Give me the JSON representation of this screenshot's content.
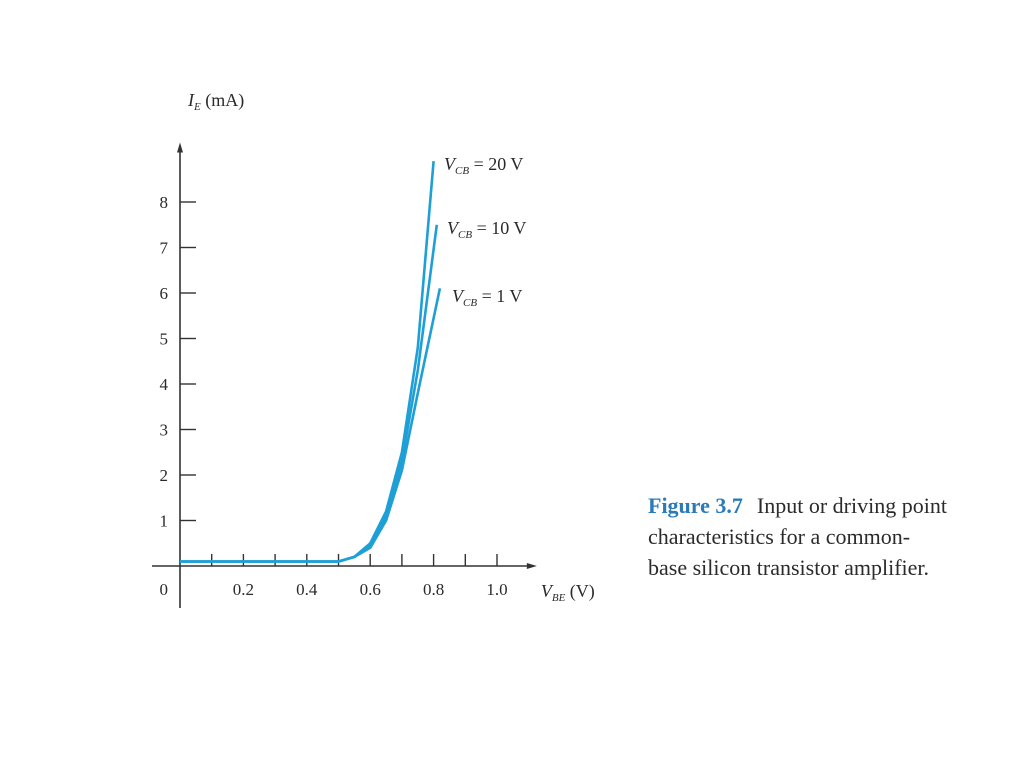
{
  "caption": {
    "figure_label": "Figure 3.7",
    "text": "Input or driving point characteristics for a common-base silicon transistor amplifier."
  },
  "chart_data": {
    "type": "line",
    "ylabel_var": "I",
    "ylabel_sub": "E",
    "ylabel_unit": "(mA)",
    "xlabel_var": "V",
    "xlabel_sub": "BE",
    "xlabel_unit": "(V)",
    "origin_label": "0",
    "xlim": [
      0,
      1.05
    ],
    "ylim": [
      0,
      9
    ],
    "x_ticks": [
      0.1,
      0.2,
      0.3,
      0.4,
      0.5,
      0.6,
      0.7,
      0.8,
      0.9,
      1.0
    ],
    "x_tick_labels": [
      {
        "value": 0.2,
        "label": "0.2"
      },
      {
        "value": 0.4,
        "label": "0.4"
      },
      {
        "value": 0.6,
        "label": "0.6"
      },
      {
        "value": 0.8,
        "label": "0.8"
      },
      {
        "value": 1.0,
        "label": "1.0"
      }
    ],
    "y_ticks": [
      1,
      2,
      3,
      4,
      5,
      6,
      7,
      8
    ],
    "y_tick_labels": [
      "1",
      "2",
      "3",
      "4",
      "5",
      "6",
      "7",
      "8"
    ],
    "colors": {
      "curve": "#1e9fd6",
      "axis": "#333333"
    },
    "series": [
      {
        "name": "V_CB = 20 V",
        "label_var": "V",
        "label_sub": "CB",
        "label_value": "= 20 V",
        "x": [
          0,
          0.5,
          0.55,
          0.6,
          0.65,
          0.7,
          0.75,
          0.8
        ],
        "y": [
          0.1,
          0.1,
          0.2,
          0.5,
          1.2,
          2.5,
          4.8,
          8.9
        ]
      },
      {
        "name": "V_CB = 10 V",
        "label_var": "V",
        "label_sub": "CB",
        "label_value": "= 10 V",
        "x": [
          0,
          0.5,
          0.55,
          0.6,
          0.65,
          0.7,
          0.75,
          0.81
        ],
        "y": [
          0.1,
          0.1,
          0.2,
          0.45,
          1.1,
          2.3,
          4.3,
          7.5
        ]
      },
      {
        "name": "V_CB = 1 V",
        "label_var": "V",
        "label_sub": "CB",
        "label_value": "= 1 V",
        "x": [
          0,
          0.5,
          0.55,
          0.6,
          0.65,
          0.7,
          0.75,
          0.82
        ],
        "y": [
          0.1,
          0.1,
          0.2,
          0.4,
          1.0,
          2.1,
          3.8,
          6.1
        ]
      }
    ]
  }
}
